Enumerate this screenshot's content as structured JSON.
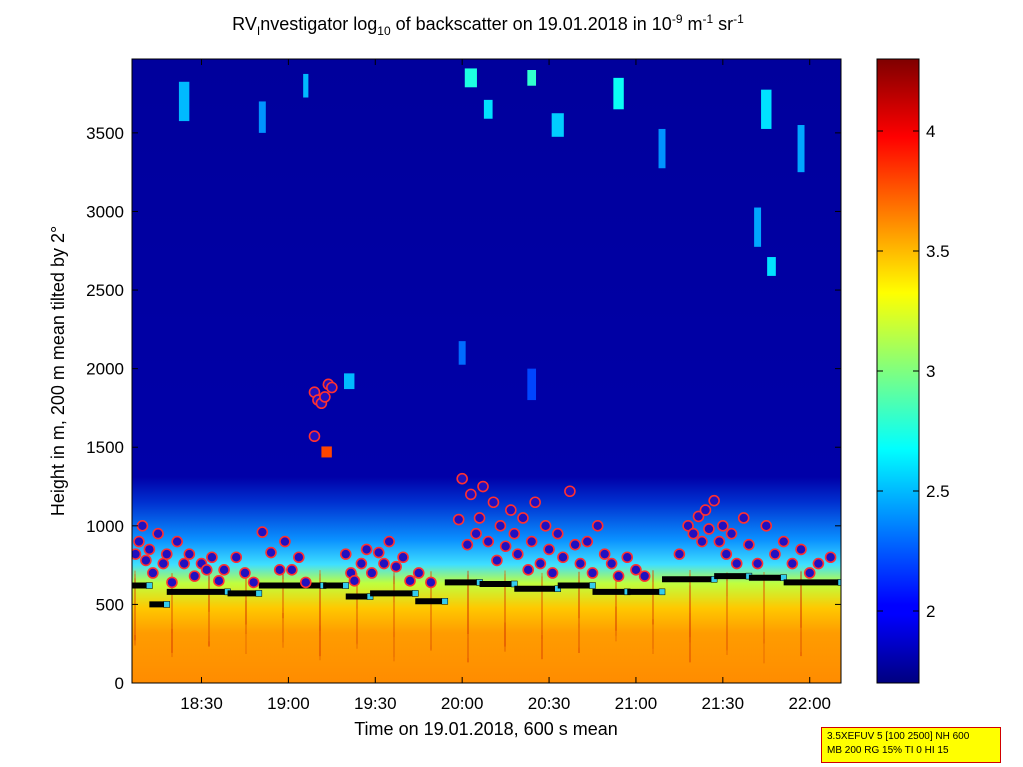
{
  "chart_data": {
    "type": "heatmap",
    "title": {
      "part1": "RV",
      "part1_sub": "I",
      "part2": "nvestigator log",
      "part2_sub": "10",
      "part3": " of backscatter on 19.01.2018 in 10",
      "sup1": "-9",
      "part4": " m",
      "sup2": "-1",
      "part5": " sr",
      "sup3": "-1"
    },
    "xlabel": "Time on 19.01.2018, 600 s mean",
    "ylabel": "Height in m, 200 m mean tilted by 2°",
    "xlim_hours": [
      18.1,
      22.18
    ],
    "ylim": [
      0,
      3970
    ],
    "x_ticks": [
      {
        "value": 18.5,
        "label": "18:30"
      },
      {
        "value": 19.0,
        "label": "19:00"
      },
      {
        "value": 19.5,
        "label": "19:30"
      },
      {
        "value": 20.0,
        "label": "20:00"
      },
      {
        "value": 20.5,
        "label": "20:30"
      },
      {
        "value": 21.0,
        "label": "21:00"
      },
      {
        "value": 21.5,
        "label": "21:30"
      },
      {
        "value": 22.0,
        "label": "22:00"
      }
    ],
    "y_ticks": [
      {
        "value": 0,
        "label": "0"
      },
      {
        "value": 500,
        "label": "500"
      },
      {
        "value": 1000,
        "label": "1000"
      },
      {
        "value": 1500,
        "label": "1500"
      },
      {
        "value": 2000,
        "label": "2000"
      },
      {
        "value": 2500,
        "label": "2500"
      },
      {
        "value": 3000,
        "label": "3000"
      },
      {
        "value": 3500,
        "label": "3500"
      }
    ],
    "colorbar": {
      "colormap": "jet",
      "lim": [
        1.7,
        4.3
      ],
      "ticks": [
        {
          "value": 2,
          "label": "2"
        },
        {
          "value": 2.5,
          "label": "2.5"
        },
        {
          "value": 3,
          "label": "3"
        },
        {
          "value": 3.5,
          "label": "3.5"
        },
        {
          "value": 4,
          "label": "4"
        }
      ]
    },
    "cloud_patches": [
      {
        "t": 18.4,
        "h": 3700,
        "dt": 0.06,
        "dh": 250,
        "v": 2.5
      },
      {
        "t": 18.85,
        "h": 3600,
        "dt": 0.04,
        "dh": 200,
        "v": 2.4
      },
      {
        "t": 19.1,
        "h": 3800,
        "dt": 0.03,
        "dh": 150,
        "v": 2.5
      },
      {
        "t": 20.05,
        "h": 3850,
        "dt": 0.07,
        "dh": 120,
        "v": 2.75
      },
      {
        "t": 20.15,
        "h": 3650,
        "dt": 0.05,
        "dh": 120,
        "v": 2.6
      },
      {
        "t": 20.4,
        "h": 3850,
        "dt": 0.05,
        "dh": 100,
        "v": 2.8
      },
      {
        "t": 20.55,
        "h": 3550,
        "dt": 0.07,
        "dh": 150,
        "v": 2.55
      },
      {
        "t": 20.9,
        "h": 3750,
        "dt": 0.06,
        "dh": 200,
        "v": 2.7
      },
      {
        "t": 21.15,
        "h": 3400,
        "dt": 0.04,
        "dh": 250,
        "v": 2.4
      },
      {
        "t": 21.75,
        "h": 3650,
        "dt": 0.06,
        "dh": 250,
        "v": 2.6
      },
      {
        "t": 21.95,
        "h": 3400,
        "dt": 0.04,
        "dh": 300,
        "v": 2.45
      },
      {
        "t": 21.7,
        "h": 2900,
        "dt": 0.04,
        "dh": 250,
        "v": 2.45
      },
      {
        "t": 21.78,
        "h": 2650,
        "dt": 0.05,
        "dh": 120,
        "v": 2.6
      },
      {
        "t": 20.0,
        "h": 2100,
        "dt": 0.04,
        "dh": 150,
        "v": 2.3
      },
      {
        "t": 20.4,
        "h": 1900,
        "dt": 0.05,
        "dh": 200,
        "v": 2.2
      },
      {
        "t": 19.35,
        "h": 1920,
        "dt": 0.06,
        "dh": 100,
        "v": 2.5
      },
      {
        "t": 19.22,
        "h": 1470,
        "dt": 0.06,
        "dh": 70,
        "v": 3.8
      }
    ],
    "series": [
      {
        "name": "cloud base detections",
        "style": "circle",
        "points": [
          [
            18.12,
            820
          ],
          [
            18.14,
            900
          ],
          [
            18.16,
            1000
          ],
          [
            18.18,
            780
          ],
          [
            18.2,
            850
          ],
          [
            18.22,
            700
          ],
          [
            18.25,
            950
          ],
          [
            18.28,
            760
          ],
          [
            18.3,
            820
          ],
          [
            18.33,
            640
          ],
          [
            18.36,
            900
          ],
          [
            18.4,
            760
          ],
          [
            18.43,
            820
          ],
          [
            18.46,
            680
          ],
          [
            18.5,
            760
          ],
          [
            18.53,
            720
          ],
          [
            18.56,
            800
          ],
          [
            18.6,
            650
          ],
          [
            18.63,
            720
          ],
          [
            18.7,
            800
          ],
          [
            18.75,
            700
          ],
          [
            18.8,
            640
          ],
          [
            18.85,
            960
          ],
          [
            18.9,
            830
          ],
          [
            18.95,
            720
          ],
          [
            18.98,
            900
          ],
          [
            19.02,
            720
          ],
          [
            19.06,
            800
          ],
          [
            19.1,
            640
          ],
          [
            19.15,
            1850
          ],
          [
            19.17,
            1800
          ],
          [
            19.19,
            1780
          ],
          [
            19.21,
            1820
          ],
          [
            19.23,
            1900
          ],
          [
            19.25,
            1880
          ],
          [
            19.15,
            1570
          ],
          [
            19.33,
            820
          ],
          [
            19.36,
            700
          ],
          [
            19.38,
            650
          ],
          [
            19.42,
            760
          ],
          [
            19.45,
            850
          ],
          [
            19.48,
            700
          ],
          [
            19.52,
            830
          ],
          [
            19.55,
            760
          ],
          [
            19.58,
            900
          ],
          [
            19.62,
            740
          ],
          [
            19.66,
            800
          ],
          [
            19.7,
            650
          ],
          [
            19.75,
            700
          ],
          [
            19.82,
            640
          ],
          [
            19.98,
            1040
          ],
          [
            20.0,
            1300
          ],
          [
            20.03,
            880
          ],
          [
            20.05,
            1200
          ],
          [
            20.08,
            950
          ],
          [
            20.1,
            1050
          ],
          [
            20.12,
            1250
          ],
          [
            20.15,
            900
          ],
          [
            20.18,
            1150
          ],
          [
            20.2,
            780
          ],
          [
            20.22,
            1000
          ],
          [
            20.25,
            870
          ],
          [
            20.28,
            1100
          ],
          [
            20.3,
            950
          ],
          [
            20.32,
            820
          ],
          [
            20.35,
            1050
          ],
          [
            20.38,
            720
          ],
          [
            20.4,
            900
          ],
          [
            20.42,
            1150
          ],
          [
            20.45,
            760
          ],
          [
            20.48,
            1000
          ],
          [
            20.5,
            850
          ],
          [
            20.52,
            700
          ],
          [
            20.55,
            950
          ],
          [
            20.58,
            800
          ],
          [
            20.62,
            1220
          ],
          [
            20.65,
            880
          ],
          [
            20.68,
            760
          ],
          [
            20.72,
            900
          ],
          [
            20.75,
            700
          ],
          [
            20.78,
            1000
          ],
          [
            20.82,
            820
          ],
          [
            20.86,
            760
          ],
          [
            20.9,
            680
          ],
          [
            20.95,
            800
          ],
          [
            21.0,
            720
          ],
          [
            21.05,
            680
          ],
          [
            21.25,
            820
          ],
          [
            21.3,
            1000
          ],
          [
            21.33,
            950
          ],
          [
            21.36,
            1060
          ],
          [
            21.38,
            900
          ],
          [
            21.4,
            1100
          ],
          [
            21.42,
            980
          ],
          [
            21.45,
            1160
          ],
          [
            21.48,
            900
          ],
          [
            21.5,
            1000
          ],
          [
            21.52,
            820
          ],
          [
            21.55,
            950
          ],
          [
            21.58,
            760
          ],
          [
            21.62,
            1050
          ],
          [
            21.65,
            880
          ],
          [
            21.7,
            760
          ],
          [
            21.75,
            1000
          ],
          [
            21.8,
            820
          ],
          [
            21.85,
            900
          ],
          [
            21.9,
            760
          ],
          [
            21.95,
            850
          ],
          [
            22.0,
            700
          ],
          [
            22.05,
            760
          ],
          [
            22.12,
            800
          ]
        ]
      },
      {
        "name": "boundary layer top",
        "style": "segment",
        "segments": [
          [
            18.1,
            18.2,
            620
          ],
          [
            18.2,
            18.3,
            500
          ],
          [
            18.3,
            18.65,
            580
          ],
          [
            18.65,
            18.83,
            570
          ],
          [
            18.83,
            19.2,
            620
          ],
          [
            19.2,
            19.33,
            620
          ],
          [
            19.33,
            19.47,
            550
          ],
          [
            19.47,
            19.73,
            570
          ],
          [
            19.73,
            19.9,
            520
          ],
          [
            19.9,
            20.1,
            640
          ],
          [
            20.1,
            20.3,
            630
          ],
          [
            20.3,
            20.55,
            600
          ],
          [
            20.55,
            20.75,
            620
          ],
          [
            20.75,
            20.95,
            580
          ],
          [
            20.95,
            21.15,
            580
          ],
          [
            21.15,
            21.45,
            660
          ],
          [
            21.45,
            21.65,
            680
          ],
          [
            21.65,
            21.85,
            670
          ],
          [
            21.85,
            22.18,
            640
          ]
        ]
      }
    ]
  },
  "info_box": {
    "line1": "3.5XEFUV 5 [100 2500] NH 600",
    "line2": "MB 200 RG 15% TI 0 HI 15",
    "border_color": "#d00000",
    "background": "#ffff00"
  }
}
